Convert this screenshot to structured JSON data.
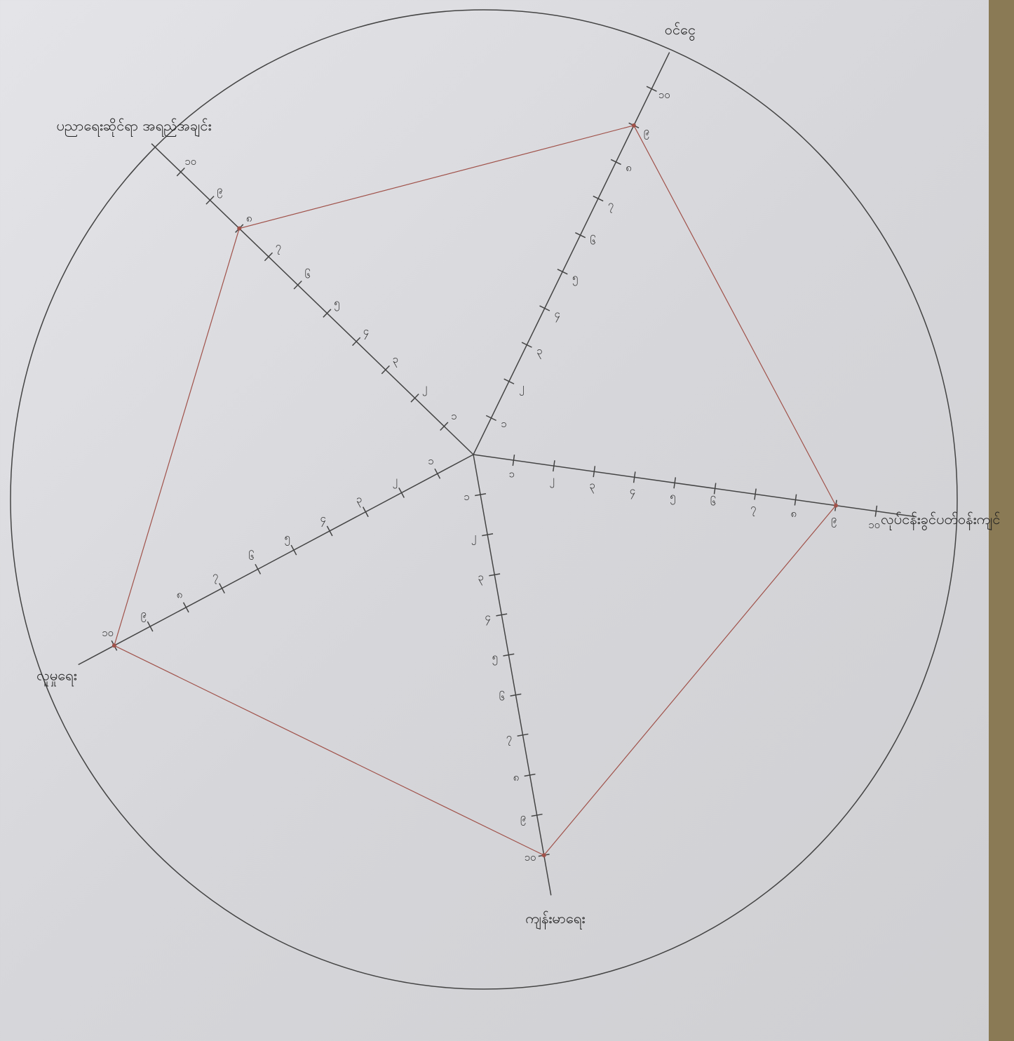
{
  "chart_data": {
    "type": "radar",
    "categories": [
      "ဝင်ငွေ",
      "လုပ်ငန်းခွင်ပတ်ဝန်းကျင်",
      "ကျန်းမာရေး",
      "လူမှုရေး",
      "ပညာရေးဆိုင်ရာ အရည်အချင်း"
    ],
    "values": [
      9,
      9,
      10,
      10,
      8
    ],
    "color": "#a0524a",
    "rlim": [
      0,
      11
    ],
    "rticks": [
      {
        "value": 1,
        "label": "၁"
      },
      {
        "value": 2,
        "label": "၂"
      },
      {
        "value": 3,
        "label": "၃"
      },
      {
        "value": 4,
        "label": "၄"
      },
      {
        "value": 5,
        "label": "၅"
      },
      {
        "value": 6,
        "label": "၆"
      },
      {
        "value": 7,
        "label": "၇"
      },
      {
        "value": 8,
        "label": "၈"
      },
      {
        "value": 9,
        "label": "၉"
      },
      {
        "value": 10,
        "label": "၁၀"
      }
    ]
  }
}
